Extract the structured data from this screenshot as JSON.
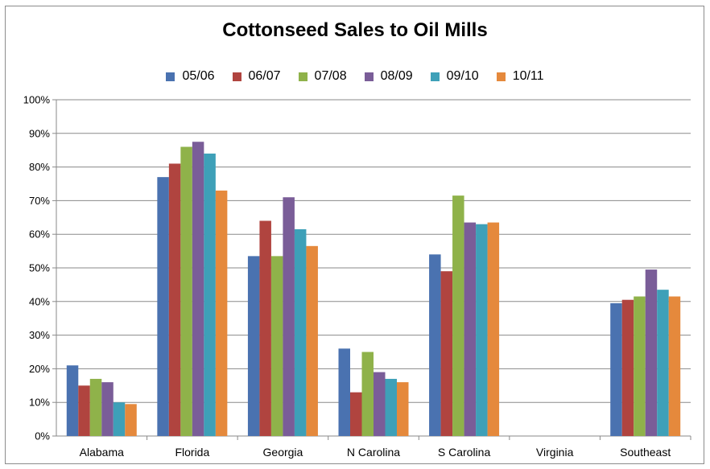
{
  "chart_data": {
    "type": "bar",
    "title": "Cottonseed Sales to Oil Mills",
    "xlabel": "",
    "ylabel": "",
    "ylim": [
      0,
      100
    ],
    "yticks": [
      "0%",
      "10%",
      "20%",
      "30%",
      "40%",
      "50%",
      "60%",
      "70%",
      "80%",
      "90%",
      "100%"
    ],
    "grid": true,
    "legend_position": "top",
    "categories": [
      "Alabama",
      "Florida",
      "Georgia",
      "N Carolina",
      "S Carolina",
      "Virginia",
      "Southeast"
    ],
    "series": [
      {
        "name": "05/06",
        "color": "#4a72b0",
        "values": [
          21,
          77,
          53.5,
          26,
          54,
          0,
          39.5
        ]
      },
      {
        "name": "06/07",
        "color": "#b0443f",
        "values": [
          15,
          81,
          64,
          13,
          49,
          0,
          40.5
        ]
      },
      {
        "name": "07/08",
        "color": "#8fb24a",
        "values": [
          17,
          86,
          53.5,
          25,
          71.5,
          0,
          41.5
        ]
      },
      {
        "name": "08/09",
        "color": "#7a5d98",
        "values": [
          16,
          87.5,
          71,
          19,
          63.5,
          0,
          49.5
        ]
      },
      {
        "name": "09/10",
        "color": "#3ea0b8",
        "values": [
          10,
          84,
          61.5,
          17,
          63,
          0,
          43.5
        ]
      },
      {
        "name": "10/11",
        "color": "#e5893c",
        "values": [
          9.5,
          73,
          56.5,
          16,
          63.5,
          0,
          41.5
        ]
      }
    ]
  }
}
